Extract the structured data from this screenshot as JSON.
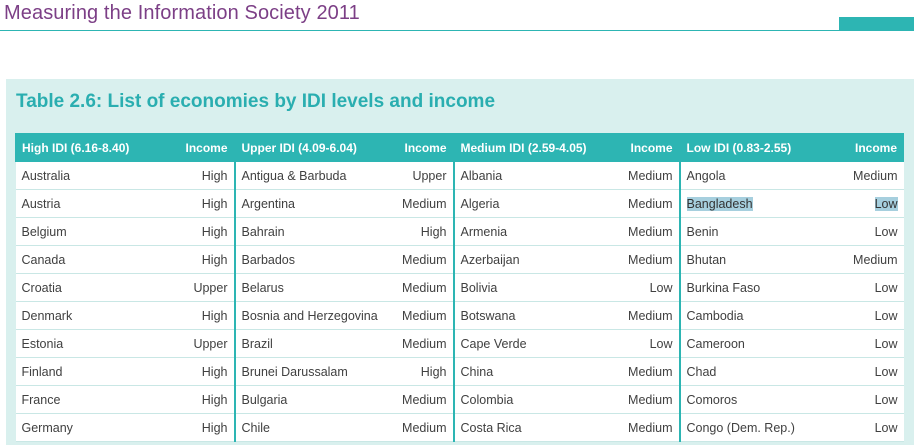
{
  "header": {
    "title": "Measuring the Information Society 2011"
  },
  "table": {
    "title": "Table 2.6: List of economies by IDI levels and income",
    "groups": [
      {
        "label": "High IDI (6.16-8.40)",
        "income_label": "Income",
        "rows": [
          {
            "economy": "Australia",
            "income": "High"
          },
          {
            "economy": "Austria",
            "income": "High"
          },
          {
            "economy": "Belgium",
            "income": "High"
          },
          {
            "economy": "Canada",
            "income": "High"
          },
          {
            "economy": "Croatia",
            "income": "Upper"
          },
          {
            "economy": "Denmark",
            "income": "High"
          },
          {
            "economy": "Estonia",
            "income": "Upper"
          },
          {
            "economy": "Finland",
            "income": "High"
          },
          {
            "economy": "France",
            "income": "High"
          },
          {
            "economy": "Germany",
            "income": "High"
          }
        ]
      },
      {
        "label": "Upper IDI (4.09-6.04)",
        "income_label": "Income",
        "rows": [
          {
            "economy": "Antigua & Barbuda",
            "income": "Upper"
          },
          {
            "economy": "Argentina",
            "income": "Medium"
          },
          {
            "economy": "Bahrain",
            "income": "High"
          },
          {
            "economy": "Barbados",
            "income": "Medium"
          },
          {
            "economy": "Belarus",
            "income": "Medium"
          },
          {
            "economy": "Bosnia and Herzegovina",
            "income": "Medium"
          },
          {
            "economy": "Brazil",
            "income": "Medium"
          },
          {
            "economy": "Brunei Darussalam",
            "income": "High"
          },
          {
            "economy": "Bulgaria",
            "income": "Medium"
          },
          {
            "economy": "Chile",
            "income": "Medium"
          }
        ]
      },
      {
        "label": "Medium IDI (2.59-4.05)",
        "income_label": "Income",
        "rows": [
          {
            "economy": "Albania",
            "income": "Medium"
          },
          {
            "economy": "Algeria",
            "income": "Medium"
          },
          {
            "economy": "Armenia",
            "income": "Medium"
          },
          {
            "economy": "Azerbaijan",
            "income": "Medium"
          },
          {
            "economy": "Bolivia",
            "income": "Low"
          },
          {
            "economy": "Botswana",
            "income": "Medium"
          },
          {
            "economy": "Cape Verde",
            "income": "Low"
          },
          {
            "economy": "China",
            "income": "Medium"
          },
          {
            "economy": "Colombia",
            "income": "Medium"
          },
          {
            "economy": "Costa Rica",
            "income": "Medium"
          }
        ]
      },
      {
        "label": "Low IDI (0.83-2.55)",
        "income_label": "Income",
        "rows": [
          {
            "economy": "Angola",
            "income": "Medium"
          },
          {
            "economy": "Bangladesh",
            "income": "Low",
            "highlighted": true
          },
          {
            "economy": "Benin",
            "income": "Low"
          },
          {
            "economy": "Bhutan",
            "income": "Medium"
          },
          {
            "economy": "Burkina Faso",
            "income": "Low"
          },
          {
            "economy": "Cambodia",
            "income": "Low"
          },
          {
            "economy": "Cameroon",
            "income": "Low"
          },
          {
            "economy": "Chad",
            "income": "Low"
          },
          {
            "economy": "Comoros",
            "income": "Low"
          },
          {
            "economy": "Congo (Dem. Rep.)",
            "income": "Low"
          }
        ]
      }
    ]
  },
  "colors": {
    "accent": "#2db5b3",
    "title_purple": "#7c3f86",
    "panel_bg": "#d9f0ee",
    "selection": "#a6cfde"
  }
}
